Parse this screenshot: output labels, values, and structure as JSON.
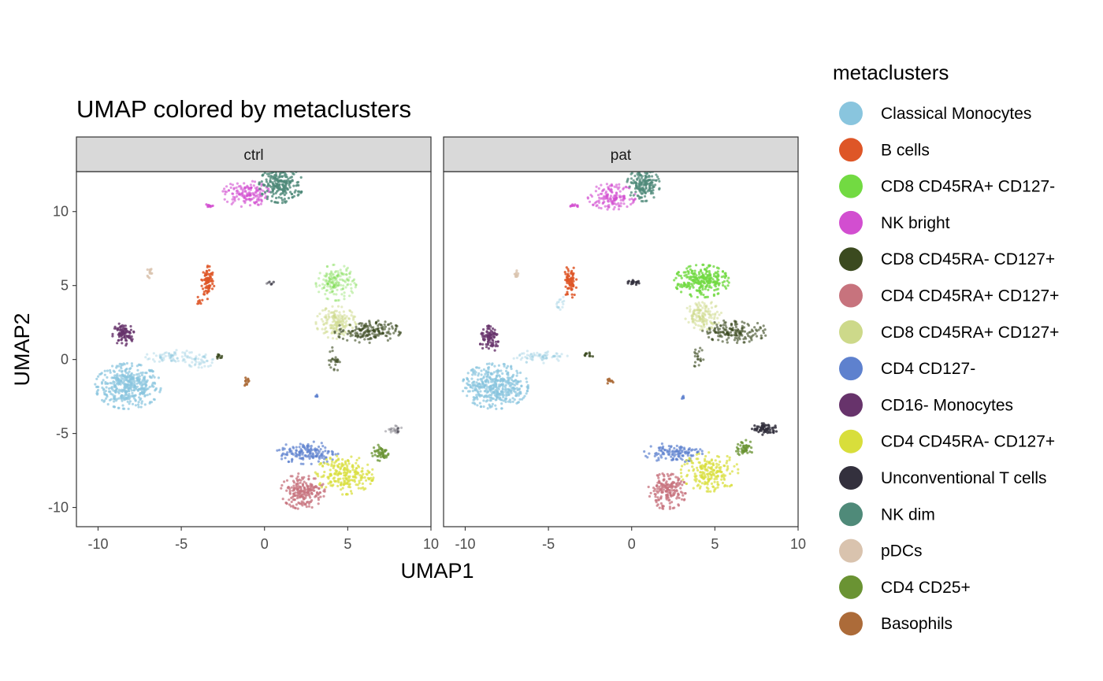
{
  "chart_data": {
    "type": "scatter",
    "title": "UMAP colored by metaclusters",
    "xlabel": "UMAP1",
    "ylabel": "UMAP2",
    "xlim": [
      -11.3,
      10
    ],
    "ylim": [
      -11.3,
      12.7
    ],
    "x_ticks": [
      -10,
      -5,
      0,
      5,
      10
    ],
    "x_tick_labels": [
      "-10",
      "-5",
      "0",
      "5",
      "10"
    ],
    "y_ticks": [
      -10,
      -5,
      0,
      5,
      10
    ],
    "y_tick_labels": [
      "-10",
      "-5",
      "0",
      "5",
      "10"
    ],
    "facets": [
      "ctrl",
      "pat"
    ],
    "legend_title": "metaclusters",
    "legend_position": "right",
    "series": [
      {
        "name": "Classical Monocytes",
        "color": "#89C5DE"
      },
      {
        "name": "B cells",
        "color": "#DE5627"
      },
      {
        "name": "CD8 CD45RA+ CD127-",
        "color": "#72DA42"
      },
      {
        "name": "NK bright",
        "color": "#D24ED0"
      },
      {
        "name": "CD8 CD45RA- CD127+",
        "color": "#3B4A1F"
      },
      {
        "name": "CD4 CD45RA+ CD127+",
        "color": "#C7737D"
      },
      {
        "name": "CD8 CD45RA+ CD127+",
        "color": "#CDD98A"
      },
      {
        "name": "CD4 CD127-",
        "color": "#5E81CE"
      },
      {
        "name": "CD16- Monocytes",
        "color": "#67336B"
      },
      {
        "name": "CD4 CD45RA- CD127+",
        "color": "#D8DE3B"
      },
      {
        "name": "Unconventional T cells",
        "color": "#33303D"
      },
      {
        "name": "NK dim",
        "color": "#4F8A79"
      },
      {
        "name": "pDCs",
        "color": "#D9C3AE"
      },
      {
        "name": "CD4 CD25+",
        "color": "#6A9333"
      },
      {
        "name": "Basophils",
        "color": "#AC6B39"
      }
    ],
    "clusters": {
      "ctrl": [
        {
          "series": "Classical Monocytes",
          "cx": -8.2,
          "cy": -1.8,
          "rx": 1.8,
          "ry": 1.4,
          "n": 420,
          "alpha": 0.7
        },
        {
          "series": "Classical Monocytes",
          "cx": -5.5,
          "cy": 0.2,
          "rx": 1.5,
          "ry": 0.4,
          "n": 70,
          "alpha": 0.35
        },
        {
          "series": "Classical Monocytes",
          "cx": -3.8,
          "cy": -0.1,
          "rx": 1.0,
          "ry": 0.4,
          "n": 40,
          "alpha": 0.35
        },
        {
          "series": "CD16- Monocytes",
          "cx": -8.5,
          "cy": 1.7,
          "rx": 0.6,
          "ry": 0.7,
          "n": 90,
          "alpha": 0.8
        },
        {
          "series": "B cells",
          "cx": -3.4,
          "cy": 5.3,
          "rx": 0.35,
          "ry": 1.1,
          "n": 80,
          "alpha": 0.85
        },
        {
          "series": "B cells",
          "cx": -3.9,
          "cy": 4.0,
          "rx": 0.15,
          "ry": 0.3,
          "n": 8,
          "alpha": 0.85
        },
        {
          "series": "NK bright",
          "cx": -1.1,
          "cy": 11.2,
          "rx": 1.3,
          "ry": 0.8,
          "n": 150,
          "alpha": 0.6
        },
        {
          "series": "NK bright",
          "cx": -3.3,
          "cy": 10.4,
          "rx": 0.4,
          "ry": 0.1,
          "n": 10,
          "alpha": 0.8
        },
        {
          "series": "NK dim",
          "cx": 1.0,
          "cy": 11.8,
          "rx": 1.2,
          "ry": 1.1,
          "n": 220,
          "alpha": 0.8
        },
        {
          "series": "pDCs",
          "cx": -6.9,
          "cy": 5.9,
          "rx": 0.15,
          "ry": 0.35,
          "n": 12,
          "alpha": 0.8
        },
        {
          "series": "Basophils",
          "cx": -1.1,
          "cy": -1.5,
          "rx": 0.2,
          "ry": 0.25,
          "n": 12,
          "alpha": 0.9
        },
        {
          "series": "CD8 CD45RA- CD127+",
          "cx": -2.7,
          "cy": 0.2,
          "rx": 0.3,
          "ry": 0.15,
          "n": 10,
          "alpha": 0.8
        },
        {
          "series": "CD8 CD45RA+ CD127-",
          "cx": 4.3,
          "cy": 5.2,
          "rx": 1.1,
          "ry": 1.1,
          "n": 160,
          "alpha": 0.35
        },
        {
          "series": "CD8 CD45RA+ CD127+",
          "cx": 4.3,
          "cy": 2.5,
          "rx": 1.1,
          "ry": 1.0,
          "n": 160,
          "alpha": 0.5
        },
        {
          "series": "CD8 CD45RA- CD127+",
          "cx": 6.2,
          "cy": 1.9,
          "rx": 1.8,
          "ry": 0.7,
          "n": 170,
          "alpha": 0.6
        },
        {
          "series": "CD8 CD45RA- CD127+",
          "cx": 4.2,
          "cy": 0.0,
          "rx": 0.3,
          "ry": 0.8,
          "n": 25,
          "alpha": 0.6
        },
        {
          "series": "CD4 CD127-",
          "cx": 2.6,
          "cy": -6.3,
          "rx": 1.7,
          "ry": 0.7,
          "n": 150,
          "alpha": 0.7
        },
        {
          "series": "CD4 CD45RA+ CD127+",
          "cx": 2.3,
          "cy": -8.9,
          "rx": 1.2,
          "ry": 1.1,
          "n": 200,
          "alpha": 0.75
        },
        {
          "series": "CD4 CD45RA- CD127+",
          "cx": 4.8,
          "cy": -7.8,
          "rx": 1.6,
          "ry": 1.2,
          "n": 220,
          "alpha": 0.7
        },
        {
          "series": "CD4 CD25+",
          "cx": 7.0,
          "cy": -6.3,
          "rx": 0.5,
          "ry": 0.5,
          "n": 50,
          "alpha": 0.75
        },
        {
          "series": "Unconventional T cells",
          "cx": 7.8,
          "cy": -4.8,
          "rx": 0.6,
          "ry": 0.3,
          "n": 25,
          "alpha": 0.3
        },
        {
          "series": "Unconventional T cells",
          "cx": 0.3,
          "cy": 5.2,
          "rx": 0.3,
          "ry": 0.15,
          "n": 10,
          "alpha": 0.45
        },
        {
          "series": "CD4 CD127-",
          "cx": 3.1,
          "cy": -2.4,
          "rx": 0.1,
          "ry": 0.2,
          "n": 5,
          "alpha": 0.8
        }
      ],
      "pat": [
        {
          "series": "Classical Monocytes",
          "cx": -8.2,
          "cy": -1.8,
          "rx": 1.8,
          "ry": 1.4,
          "n": 420,
          "alpha": 0.7
        },
        {
          "series": "Classical Monocytes",
          "cx": -5.5,
          "cy": 0.2,
          "rx": 1.5,
          "ry": 0.4,
          "n": 70,
          "alpha": 0.35
        },
        {
          "series": "Classical Monocytes",
          "cx": -4.2,
          "cy": 3.8,
          "rx": 0.3,
          "ry": 0.4,
          "n": 15,
          "alpha": 0.35
        },
        {
          "series": "CD16- Monocytes",
          "cx": -8.5,
          "cy": 1.4,
          "rx": 0.6,
          "ry": 0.8,
          "n": 90,
          "alpha": 0.8
        },
        {
          "series": "B cells",
          "cx": -3.7,
          "cy": 5.2,
          "rx": 0.35,
          "ry": 1.1,
          "n": 70,
          "alpha": 0.85
        },
        {
          "series": "NK bright",
          "cx": -1.2,
          "cy": 11.0,
          "rx": 1.3,
          "ry": 0.8,
          "n": 150,
          "alpha": 0.6
        },
        {
          "series": "NK bright",
          "cx": -3.4,
          "cy": 10.4,
          "rx": 0.4,
          "ry": 0.1,
          "n": 10,
          "alpha": 0.8
        },
        {
          "series": "NK dim",
          "cx": 0.7,
          "cy": 11.8,
          "rx": 0.9,
          "ry": 1.0,
          "n": 170,
          "alpha": 0.75
        },
        {
          "series": "pDCs",
          "cx": -6.9,
          "cy": 5.8,
          "rx": 0.15,
          "ry": 0.35,
          "n": 10,
          "alpha": 0.8
        },
        {
          "series": "Basophils",
          "cx": -1.3,
          "cy": -1.4,
          "rx": 0.2,
          "ry": 0.25,
          "n": 12,
          "alpha": 0.9
        },
        {
          "series": "CD8 CD45RA- CD127+",
          "cx": -2.6,
          "cy": 0.3,
          "rx": 0.3,
          "ry": 0.15,
          "n": 10,
          "alpha": 0.8
        },
        {
          "series": "Unconventional T cells",
          "cx": 0.2,
          "cy": 5.2,
          "rx": 0.4,
          "ry": 0.15,
          "n": 20,
          "alpha": 0.85
        },
        {
          "series": "CD8 CD45RA+ CD127-",
          "cx": 4.2,
          "cy": 5.3,
          "rx": 1.5,
          "ry": 1.0,
          "n": 260,
          "alpha": 0.8
        },
        {
          "series": "CD8 CD45RA+ CD127+",
          "cx": 4.3,
          "cy": 3.0,
          "rx": 1.0,
          "ry": 0.9,
          "n": 140,
          "alpha": 0.5
        },
        {
          "series": "CD8 CD45RA- CD127+",
          "cx": 6.2,
          "cy": 1.9,
          "rx": 1.8,
          "ry": 0.7,
          "n": 160,
          "alpha": 0.6
        },
        {
          "series": "CD8 CD45RA- CD127+",
          "cx": 4.0,
          "cy": 0.0,
          "rx": 0.3,
          "ry": 0.8,
          "n": 20,
          "alpha": 0.6
        },
        {
          "series": "CD4 CD127-",
          "cx": 2.5,
          "cy": -6.3,
          "rx": 1.6,
          "ry": 0.6,
          "n": 120,
          "alpha": 0.7
        },
        {
          "series": "CD4 CD45RA+ CD127+",
          "cx": 2.1,
          "cy": -8.9,
          "rx": 1.1,
          "ry": 1.1,
          "n": 180,
          "alpha": 0.75
        },
        {
          "series": "CD4 CD45RA- CD127+",
          "cx": 4.7,
          "cy": -7.6,
          "rx": 1.6,
          "ry": 1.2,
          "n": 200,
          "alpha": 0.7
        },
        {
          "series": "CD4 CD25+",
          "cx": 6.8,
          "cy": -6.0,
          "rx": 0.5,
          "ry": 0.5,
          "n": 50,
          "alpha": 0.75
        },
        {
          "series": "Unconventional T cells",
          "cx": 8.0,
          "cy": -4.7,
          "rx": 0.7,
          "ry": 0.35,
          "n": 70,
          "alpha": 0.85
        },
        {
          "series": "CD4 CD127-",
          "cx": 3.1,
          "cy": -2.6,
          "rx": 0.1,
          "ry": 0.2,
          "n": 5,
          "alpha": 0.8
        }
      ]
    }
  }
}
